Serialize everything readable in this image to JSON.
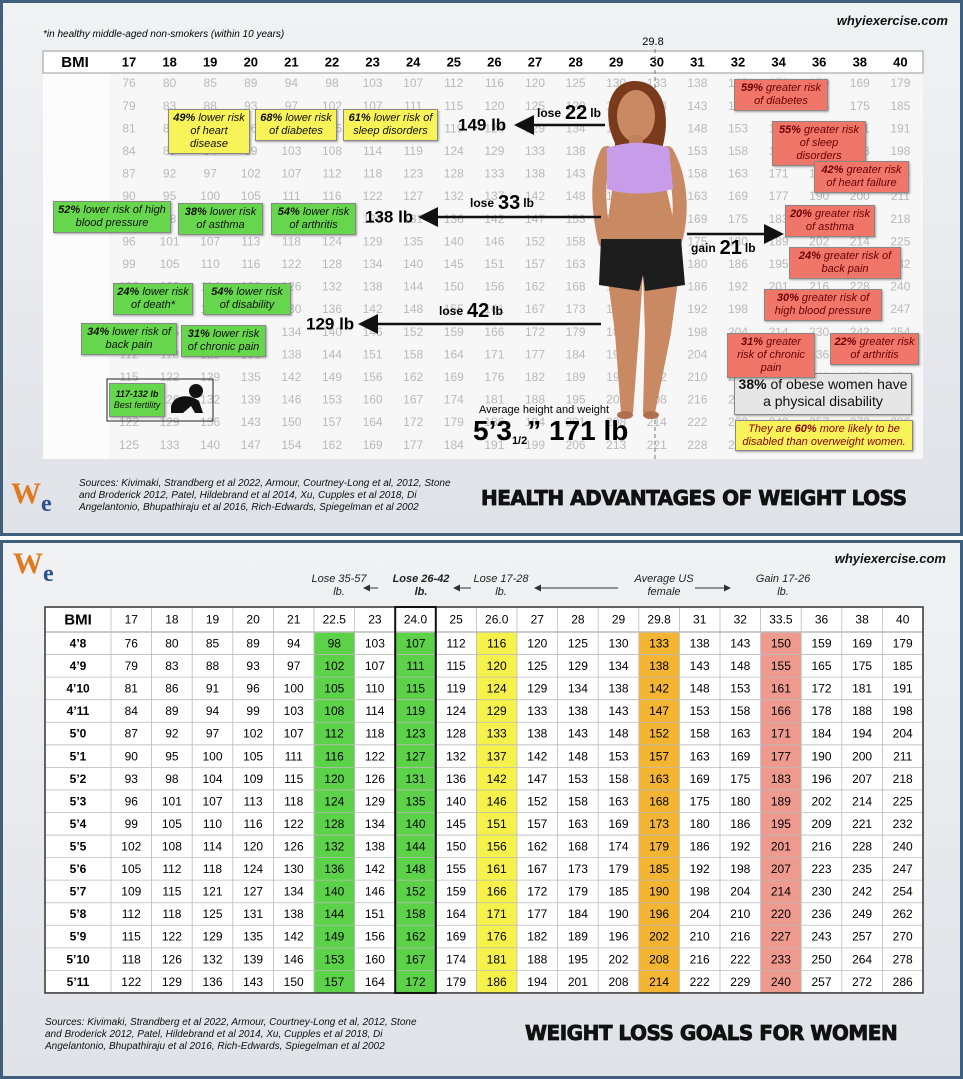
{
  "top": {
    "site": "whyiexercise.com",
    "footnote": "*in healthy middle-aged non-smokers (within 10 years)",
    "average_marker": "29.8",
    "bmi_header": "BMI",
    "bmi_columns": [
      17,
      18,
      19,
      20,
      21,
      22,
      23,
      24,
      25,
      26,
      27,
      28,
      29,
      30,
      31,
      32,
      34,
      36,
      38,
      40
    ],
    "extra_row": [
      125,
      133,
      140,
      147,
      154,
      162,
      169,
      177,
      184,
      191,
      199,
      206,
      213,
      221,
      228,
      235,
      250,
      265,
      280,
      294
    ],
    "yellow_boxes": [
      {
        "pct": "49%",
        "text": "lower risk of heart disease"
      },
      {
        "pct": "68%",
        "text": "lower risk of diabetes"
      },
      {
        "pct": "61%",
        "text": "lower risk of sleep disorders"
      }
    ],
    "green_boxes": [
      {
        "pct": "52%",
        "text": "lower risk of high blood pressure"
      },
      {
        "pct": "38%",
        "text": "lower risk of asthma"
      },
      {
        "pct": "54%",
        "text": "lower risk of arthritis"
      },
      {
        "pct": "24%",
        "text": "lower risk of death*"
      },
      {
        "pct": "54%",
        "text": "lower risk of disability"
      },
      {
        "pct": "34%",
        "text": "lower risk of back pain"
      },
      {
        "pct": "31%",
        "text": "lower risk of chronic pain"
      }
    ],
    "red_boxes": [
      {
        "pct": "59%",
        "text": "greater risk of diabetes"
      },
      {
        "pct": "55%",
        "text": "greater risk of sleep disorders"
      },
      {
        "pct": "42%",
        "text": "greater risk of heart failure"
      },
      {
        "pct": "20%",
        "text": "greater risk of asthma"
      },
      {
        "pct": "24%",
        "text": "greater risk of back pain"
      },
      {
        "pct": "30%",
        "text": "greater risk of high blood pressure"
      },
      {
        "pct": "31%",
        "text": "greater risk of chronic pain"
      },
      {
        "pct": "22%",
        "text": "greater risk of arthritis"
      }
    ],
    "fertility": {
      "range": "117-132 lb",
      "text": "Best fertility"
    },
    "obese_note": {
      "pct": "38%",
      "text": "of obese women have a physical disability"
    },
    "disabled_note": {
      "before": "They are",
      "pct": "60%",
      "after": "more likely to be disabled than overweight women."
    },
    "changes": [
      {
        "verb": "lose",
        "amount": "22",
        "unit": "lb",
        "target": "149 lb"
      },
      {
        "verb": "lose",
        "amount": "33",
        "unit": "lb",
        "target": "138 lb"
      },
      {
        "verb": "lose",
        "amount": "42",
        "unit": "lb",
        "target": "129 lb"
      },
      {
        "verb": "gain",
        "amount": "21",
        "unit": "lb"
      }
    ],
    "average": {
      "caption": "Average height and weight",
      "height": "5’3",
      "fraction": "1/2",
      "rest": "” 171 lb"
    },
    "logo": [
      "W",
      "e"
    ],
    "sources": "Sources:  Kivimaki, Strandberg et al 2022, Armour, Courtney-Long et al, 2012, Stone and Broderick 2012, Patel, Hildebrand et al 2014, Xu, Cupples et al 2018, Di Angelantonio, Bhupathiraju et al 2016, Rich-Edwards, Spiegelman et al 2002",
    "title": "HEALTH ADVANTAGES OF WEIGHT LOSS"
  },
  "bottom": {
    "site": "whyiexercise.com",
    "logo": [
      "W",
      "e"
    ],
    "annotations": [
      {
        "text": "Lose 35-57 lb."
      },
      {
        "text": "Lose 26-42 lb.",
        "bold": true
      },
      {
        "text": "Lose 17-28 lb."
      },
      {
        "text": "Average US female"
      },
      {
        "text": "Gain 17-26 lb."
      }
    ],
    "table": {
      "header": [
        "BMI",
        "17",
        "18",
        "19",
        "20",
        "21",
        "22.5",
        "23",
        "24.0",
        "25",
        "26.0",
        "27",
        "28",
        "29",
        "29.8",
        "31",
        "32",
        "33.5",
        "36",
        "38",
        "40"
      ],
      "rows": [
        [
          "4’8",
          76,
          80,
          85,
          89,
          94,
          98,
          103,
          107,
          112,
          116,
          120,
          125,
          130,
          133,
          138,
          143,
          150,
          159,
          169,
          179
        ],
        [
          "4’9",
          79,
          83,
          88,
          93,
          97,
          102,
          107,
          111,
          115,
          120,
          125,
          129,
          134,
          138,
          143,
          148,
          155,
          165,
          175,
          185
        ],
        [
          "4’10",
          81,
          86,
          91,
          96,
          100,
          105,
          110,
          115,
          119,
          124,
          129,
          134,
          138,
          142,
          148,
          153,
          161,
          172,
          181,
          191
        ],
        [
          "4’11",
          84,
          89,
          94,
          99,
          103,
          108,
          114,
          119,
          124,
          129,
          133,
          138,
          143,
          147,
          153,
          158,
          166,
          178,
          188,
          198
        ],
        [
          "5’0",
          87,
          92,
          97,
          102,
          107,
          112,
          118,
          123,
          128,
          133,
          138,
          143,
          148,
          152,
          158,
          163,
          171,
          184,
          194,
          204
        ],
        [
          "5’1",
          90,
          95,
          100,
          105,
          111,
          116,
          122,
          127,
          132,
          137,
          142,
          148,
          153,
          157,
          163,
          169,
          177,
          190,
          200,
          211
        ],
        [
          "5’2",
          93,
          98,
          104,
          109,
          115,
          120,
          126,
          131,
          136,
          142,
          147,
          153,
          158,
          163,
          169,
          175,
          183,
          196,
          207,
          218
        ],
        [
          "5’3",
          96,
          101,
          107,
          113,
          118,
          124,
          129,
          135,
          140,
          146,
          152,
          158,
          163,
          168,
          175,
          180,
          189,
          202,
          214,
          225
        ],
        [
          "5’4",
          99,
          105,
          110,
          116,
          122,
          128,
          134,
          140,
          145,
          151,
          157,
          163,
          169,
          173,
          180,
          186,
          195,
          209,
          221,
          232
        ],
        [
          "5’5",
          102,
          108,
          114,
          120,
          126,
          132,
          138,
          144,
          150,
          156,
          162,
          168,
          174,
          179,
          186,
          192,
          201,
          216,
          228,
          240
        ],
        [
          "5’6",
          105,
          112,
          118,
          124,
          130,
          136,
          142,
          148,
          155,
          161,
          167,
          173,
          179,
          185,
          192,
          198,
          207,
          223,
          235,
          247
        ],
        [
          "5’7",
          109,
          115,
          121,
          127,
          134,
          140,
          146,
          152,
          159,
          166,
          172,
          179,
          185,
          190,
          198,
          204,
          214,
          230,
          242,
          254
        ],
        [
          "5’8",
          112,
          118,
          125,
          131,
          138,
          144,
          151,
          158,
          164,
          171,
          177,
          184,
          190,
          196,
          204,
          210,
          220,
          236,
          249,
          262
        ],
        [
          "5’9",
          115,
          122,
          129,
          135,
          142,
          149,
          156,
          162,
          169,
          176,
          182,
          189,
          196,
          202,
          210,
          216,
          227,
          243,
          257,
          270
        ],
        [
          "5’10",
          118,
          126,
          132,
          139,
          146,
          153,
          160,
          167,
          174,
          181,
          188,
          195,
          202,
          208,
          216,
          222,
          233,
          250,
          264,
          278
        ],
        [
          "5’11",
          122,
          129,
          136,
          143,
          150,
          157,
          164,
          172,
          179,
          186,
          194,
          201,
          208,
          214,
          222,
          229,
          240,
          257,
          272,
          286
        ]
      ]
    },
    "highlights": [
      {
        "column": "22.5",
        "color": "#5cd249"
      },
      {
        "column": "24.0",
        "color": "#5cd249"
      },
      {
        "column": "26.0",
        "color": "#f6f24b"
      },
      {
        "column": "29.8",
        "color": "#f4b533"
      },
      {
        "column": "33.5",
        "color": "#ef9a8f"
      }
    ],
    "outlined": "24.0",
    "sources": "Sources:  Kivimaki, Strandberg et al 2022, Armour, Courtney-Long et al, 2012, Stone and Broderick 2012, Patel, Hildebrand et al 2014, Xu, Cupples et al 2018, Di Angelantonio, Bhupathiraju et al 2016, Rich-Edwards, Spiegelman et al 2002",
    "title": "WEIGHT LOSS GOALS FOR WOMEN"
  }
}
